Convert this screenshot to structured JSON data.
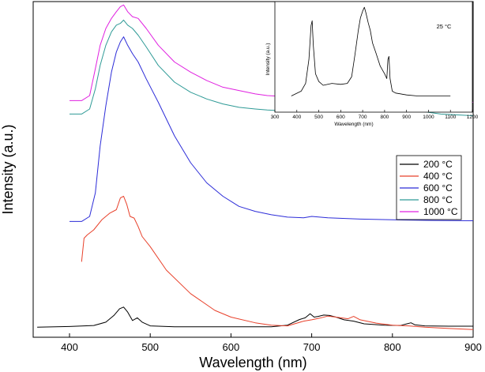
{
  "chart_data": [
    {
      "type": "line",
      "xlabel": "Wavelength (nm)",
      "ylabel": "Intensity (a.u.)",
      "xlim": [
        355,
        900
      ],
      "xticks": [
        400,
        500,
        600,
        700,
        800,
        900
      ],
      "ylim": [
        0,
        1
      ],
      "yticks_shown": false,
      "legend_position": "right",
      "grid": false,
      "series": [
        {
          "name": "200 °C",
          "color": "#000000",
          "x": [
            360,
            400,
            430,
            445,
            455,
            462,
            467,
            472,
            478,
            484,
            490,
            500,
            530,
            600,
            650,
            670,
            685,
            692,
            698,
            703,
            708,
            715,
            722,
            730,
            740,
            752,
            765,
            790,
            810,
            818,
            823,
            828,
            840,
            870,
            900
          ],
          "y": [
            0.03,
            0.032,
            0.035,
            0.045,
            0.065,
            0.085,
            0.09,
            0.075,
            0.05,
            0.058,
            0.045,
            0.034,
            0.031,
            0.031,
            0.031,
            0.036,
            0.053,
            0.058,
            0.07,
            0.06,
            0.062,
            0.066,
            0.065,
            0.06,
            0.052,
            0.048,
            0.04,
            0.036,
            0.035,
            0.04,
            0.043,
            0.037,
            0.034,
            0.033,
            0.033
          ]
        },
        {
          "name": "400 °C",
          "color": "#e8402a",
          "x": [
            415,
            418,
            422,
            430,
            440,
            450,
            458,
            463,
            467,
            471,
            475,
            480,
            485,
            490,
            500,
            520,
            550,
            580,
            600,
            630,
            650,
            670,
            690,
            700,
            710,
            720,
            730,
            745,
            752,
            760,
            780,
            800,
            820,
            840,
            870,
            900
          ],
          "y": [
            0.225,
            0.295,
            0.305,
            0.32,
            0.35,
            0.37,
            0.38,
            0.415,
            0.42,
            0.395,
            0.36,
            0.355,
            0.33,
            0.3,
            0.27,
            0.2,
            0.13,
            0.08,
            0.06,
            0.043,
            0.036,
            0.034,
            0.048,
            0.052,
            0.057,
            0.063,
            0.06,
            0.055,
            0.062,
            0.052,
            0.042,
            0.036,
            0.034,
            0.03,
            0.026,
            0.023
          ]
        },
        {
          "name": "600 °C",
          "color": "#2c2cd8",
          "x": [
            400,
            415,
            425,
            432,
            438,
            445,
            452,
            458,
            463,
            467,
            472,
            478,
            485,
            495,
            510,
            530,
            550,
            570,
            590,
            610,
            630,
            650,
            670,
            690,
            700,
            720,
            760,
            800,
            850,
            900
          ],
          "y": [
            0.345,
            0.345,
            0.36,
            0.43,
            0.57,
            0.69,
            0.79,
            0.85,
            0.88,
            0.895,
            0.87,
            0.845,
            0.82,
            0.77,
            0.7,
            0.6,
            0.52,
            0.46,
            0.42,
            0.39,
            0.375,
            0.365,
            0.358,
            0.356,
            0.36,
            0.356,
            0.352,
            0.35,
            0.348,
            0.347
          ]
        },
        {
          "name": "800 °C",
          "color": "#2e9a96",
          "x": [
            400,
            415,
            425,
            432,
            438,
            445,
            452,
            458,
            463,
            467,
            472,
            478,
            485,
            495,
            510,
            530,
            550,
            570,
            590,
            610,
            630,
            645,
            660,
            670,
            680,
            690,
            698,
            705,
            715,
            725,
            735,
            750,
            762,
            770,
            790,
            810,
            818,
            823,
            830,
            860,
            900
          ],
          "y": [
            0.665,
            0.665,
            0.68,
            0.74,
            0.81,
            0.87,
            0.91,
            0.93,
            0.935,
            0.945,
            0.93,
            0.92,
            0.9,
            0.865,
            0.81,
            0.76,
            0.73,
            0.71,
            0.695,
            0.685,
            0.68,
            0.677,
            0.675,
            0.678,
            0.7,
            0.71,
            0.73,
            0.715,
            0.725,
            0.735,
            0.715,
            0.7,
            0.69,
            0.685,
            0.675,
            0.672,
            0.682,
            0.688,
            0.675,
            0.665,
            0.66
          ]
        },
        {
          "name": "1000 °C",
          "color": "#e020e0",
          "x": [
            400,
            415,
            425,
            432,
            438,
            445,
            452,
            458,
            463,
            467,
            472,
            478,
            485,
            495,
            510,
            530,
            550,
            570,
            590,
            610,
            630,
            645,
            660,
            670,
            680,
            690,
            698,
            705,
            715,
            725,
            735,
            750,
            762,
            770,
            790,
            810,
            818,
            823,
            830,
            860,
            900
          ],
          "y": [
            0.705,
            0.705,
            0.72,
            0.8,
            0.87,
            0.92,
            0.95,
            0.97,
            0.985,
            0.99,
            0.97,
            0.955,
            0.95,
            0.92,
            0.87,
            0.82,
            0.79,
            0.765,
            0.745,
            0.735,
            0.725,
            0.72,
            0.718,
            0.722,
            0.74,
            0.75,
            0.765,
            0.752,
            0.762,
            0.758,
            0.745,
            0.735,
            0.725,
            0.72,
            0.712,
            0.708,
            0.715,
            0.72,
            0.71,
            0.702,
            0.7
          ]
        }
      ]
    },
    {
      "type": "line",
      "title": "25 °C",
      "xlabel": "Wavelength (nm)",
      "ylabel": "Intensity (a.u.)",
      "xlim": [
        300,
        1200
      ],
      "xticks": [
        300,
        400,
        500,
        600,
        700,
        800,
        900,
        1000,
        1100,
        1200
      ],
      "ylim": [
        0,
        1
      ],
      "series": [
        {
          "color": "#000000",
          "x": [
            375,
            420,
            440,
            455,
            465,
            470,
            475,
            485,
            500,
            520,
            560,
            600,
            630,
            650,
            665,
            680,
            690,
            700,
            708,
            715,
            725,
            735,
            745,
            760,
            780,
            800,
            810,
            815,
            820,
            825,
            835,
            850,
            900,
            950,
            1000,
            1050,
            1100
          ],
          "y": [
            0.07,
            0.12,
            0.2,
            0.45,
            0.8,
            0.85,
            0.6,
            0.3,
            0.22,
            0.18,
            0.2,
            0.19,
            0.2,
            0.27,
            0.5,
            0.75,
            0.88,
            0.95,
            0.99,
            0.93,
            0.83,
            0.75,
            0.62,
            0.52,
            0.38,
            0.3,
            0.25,
            0.45,
            0.48,
            0.25,
            0.12,
            0.1,
            0.08,
            0.07,
            0.07,
            0.07,
            0.07
          ]
        }
      ]
    }
  ]
}
